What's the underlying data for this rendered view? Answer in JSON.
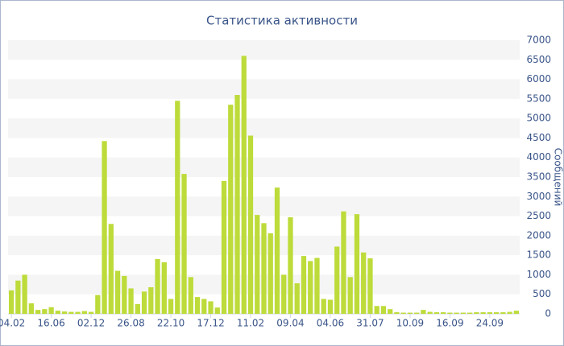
{
  "chart_data": {
    "type": "bar",
    "title": "Статистика активности",
    "y_label": "Сообщений",
    "categories": [
      "04.02",
      null,
      null,
      null,
      null,
      null,
      "16.06",
      null,
      null,
      null,
      null,
      null,
      "02.12",
      null,
      null,
      null,
      null,
      null,
      "26.08",
      null,
      null,
      null,
      null,
      null,
      "22.10",
      null,
      null,
      null,
      null,
      null,
      "17.12",
      null,
      null,
      null,
      null,
      null,
      "11.02",
      null,
      null,
      null,
      null,
      null,
      "09.04",
      null,
      null,
      null,
      null,
      null,
      "04.06",
      null,
      null,
      null,
      null,
      null,
      "31.07",
      null,
      null,
      null,
      null,
      null,
      "10.09",
      null,
      null,
      null,
      null,
      null,
      "16.09",
      null,
      null,
      null,
      null,
      null,
      "24.09",
      null,
      null,
      null,
      null
    ],
    "values": [
      600,
      850,
      1000,
      270,
      100,
      120,
      170,
      80,
      60,
      50,
      50,
      70,
      50,
      480,
      4420,
      2300,
      1100,
      970,
      650,
      250,
      570,
      680,
      1400,
      1320,
      380,
      5450,
      3580,
      940,
      430,
      380,
      320,
      160,
      3400,
      5350,
      5600,
      6600,
      4560,
      2530,
      2320,
      2060,
      3230,
      1000,
      2470,
      780,
      1480,
      1350,
      1430,
      380,
      360,
      1720,
      2620,
      940,
      2550,
      1570,
      1420,
      200,
      200,
      120,
      40,
      30,
      30,
      30,
      100,
      50,
      40,
      40,
      30,
      30,
      30,
      30,
      40,
      40,
      40,
      40,
      40,
      50,
      80
    ],
    "color": "#bddb3a",
    "ylim": [
      0,
      7000
    ],
    "yticks": [
      0,
      500,
      1000,
      1500,
      2000,
      2500,
      3000,
      3500,
      4000,
      4500,
      5000,
      5500,
      6000,
      6500,
      7000
    ],
    "grid": true
  }
}
